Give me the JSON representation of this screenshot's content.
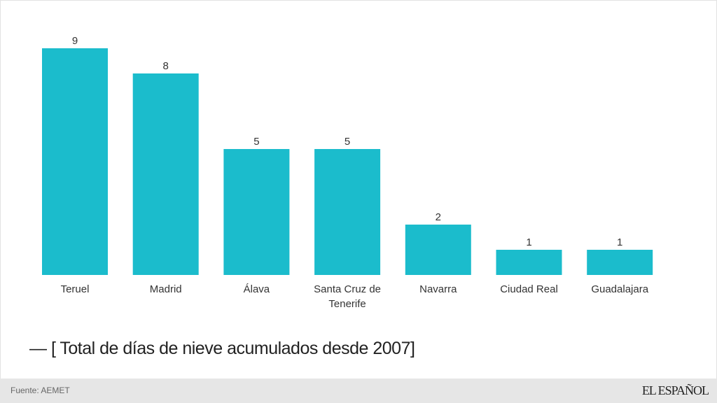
{
  "chart_data": {
    "type": "bar",
    "categories": [
      "Teruel",
      "Madrid",
      "Álava",
      "Santa Cruz de Tenerife",
      "Navarra",
      "Ciudad Real",
      "Guadalajara"
    ],
    "values": [
      9,
      8,
      5,
      5,
      2,
      1,
      1
    ],
    "legend": "[ Total de días de nieve acumulados desde 2007]",
    "bar_color": "#1bbccc",
    "grid": false,
    "ylim": [
      0,
      9
    ]
  },
  "footer": {
    "source": "Fuente: AEMET",
    "logo": "EL ESPAÑOL"
  }
}
